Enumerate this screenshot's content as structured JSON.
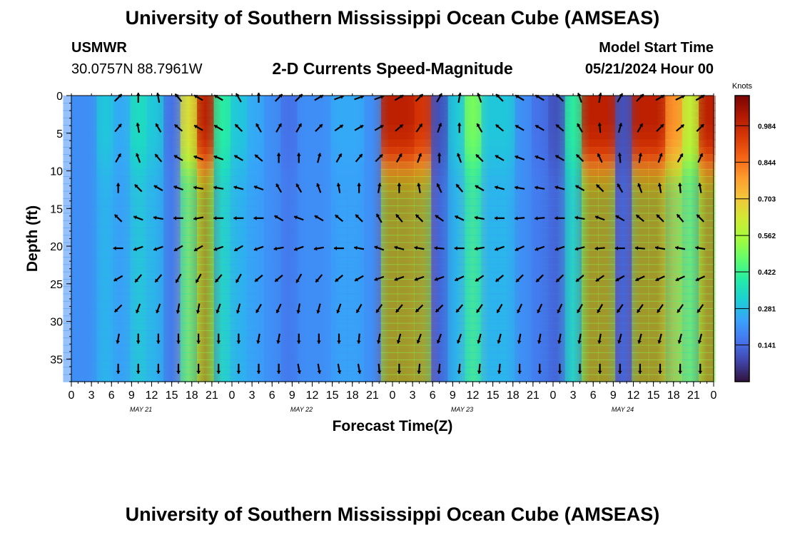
{
  "header": {
    "title": "University of Southern Mississippi Ocean Cube (AMSEAS)",
    "station_name": "USMWR",
    "station_coords": "30.0757N  88.7961W",
    "plot_title": "2-D Currents Speed-Magnitude",
    "model_start_label": "Model Start Time",
    "model_start_value": "05/21/2024 Hour 00"
  },
  "footer": {
    "title": "University of Southern Mississippi Ocean Cube (AMSEAS)"
  },
  "colors": {
    "palette": [
      "#30123b",
      "#4145ab",
      "#4675ed",
      "#39a2fc",
      "#1bcfd4",
      "#24eca6",
      "#61fc6c",
      "#a4fc3b",
      "#d1e834",
      "#f3c63a",
      "#fe9b2d",
      "#f36315",
      "#d93806",
      "#b11901",
      "#7a0403"
    ]
  },
  "chart_data": {
    "type": "heatmap",
    "title": "2-D Currents Speed-Magnitude",
    "xlabel": "Forecast Time(Z)",
    "ylabel": "Depth (ft)",
    "x_range_hours": [
      0,
      96
    ],
    "ylim": [
      38,
      0
    ],
    "x_ticks": [
      "0",
      "3",
      "6",
      "9",
      "12",
      "15",
      "18",
      "21",
      "0",
      "3",
      "6",
      "9",
      "12",
      "15",
      "18",
      "21",
      "0",
      "3",
      "6",
      "9",
      "12",
      "15",
      "18",
      "21",
      "0",
      "3",
      "6",
      "9",
      "12",
      "15",
      "18",
      "21",
      "0"
    ],
    "y_ticks": [
      "0",
      "5",
      "10",
      "15",
      "20",
      "25",
      "30",
      "35"
    ],
    "y_tick_values": [
      0,
      5,
      10,
      15,
      20,
      25,
      30,
      35
    ],
    "date_labels": [
      "MAY 21",
      "MAY 22",
      "MAY 23",
      "MAY 24"
    ],
    "colorbar": {
      "unit": "Knots",
      "ticks": [
        "0.984",
        "0.844",
        "0.703",
        "0.562",
        "0.422",
        "0.281",
        "0.141"
      ],
      "tick_values": [
        0.984,
        0.844,
        0.703,
        0.562,
        0.422,
        0.281,
        0.141
      ],
      "range": [
        0,
        1.1
      ]
    },
    "profile_columns_hours": [
      0,
      2.5,
      5,
      7.5,
      10,
      12.5,
      15,
      17.5,
      20,
      22.5,
      25,
      27.5,
      30,
      32.5,
      35,
      37.5,
      40,
      42.5,
      45,
      47.5,
      50,
      52.5,
      55,
      57.5,
      60,
      62.5,
      65,
      67.5,
      70,
      72.5,
      75,
      77.5,
      80,
      82.5,
      85,
      87.5,
      90,
      92.5,
      95
    ],
    "profile_speed_knots": [
      0.2,
      0.2,
      0.3,
      0.25,
      0.35,
      0.3,
      0.15,
      0.65,
      1.0,
      0.4,
      0.3,
      0.25,
      0.2,
      0.15,
      0.2,
      0.2,
      0.25,
      0.25,
      0.2,
      1.0,
      1.0,
      0.95,
      0.1,
      0.3,
      0.5,
      0.3,
      0.3,
      0.2,
      0.15,
      0.1,
      0.4,
      1.0,
      1.0,
      0.1,
      1.0,
      1.0,
      0.8,
      0.6,
      1.0
    ],
    "depth_profile_factor": [
      1.0,
      1.0,
      1.0,
      1.0,
      0.98,
      0.96,
      0.92,
      0.86,
      0.78,
      0.68,
      0.58,
      0.5,
      0.45,
      0.42,
      0.4,
      0.4,
      0.4,
      0.4,
      0.4,
      0.4,
      0.4,
      0.4,
      0.4,
      0.4,
      0.4,
      0.4,
      0.4,
      0.4,
      0.4,
      0.4,
      0.4,
      0.4,
      0.4,
      0.4,
      0.4,
      0.4,
      0.4,
      0.4,
      0.4
    ],
    "arrow_depths_ft": [
      0,
      4,
      8,
      12,
      16,
      20,
      24,
      28,
      32,
      36
    ],
    "arrow_hours": [
      7,
      10,
      13,
      16,
      19,
      22,
      25,
      28,
      31,
      34,
      37,
      40,
      43,
      46,
      49,
      52,
      55,
      58,
      61,
      64,
      67,
      70,
      73,
      76,
      79,
      82,
      85,
      88,
      91,
      94
    ],
    "arrow_directions_deg": [
      [
        45,
        50,
        60,
        90,
        135,
        180,
        210,
        225,
        260,
        270
      ],
      [
        90,
        100,
        110,
        135,
        160,
        200,
        230,
        250,
        270,
        270
      ],
      [
        100,
        120,
        130,
        150,
        170,
        200,
        230,
        250,
        270,
        270
      ],
      [
        130,
        140,
        150,
        160,
        180,
        210,
        240,
        260,
        270,
        270
      ],
      [
        150,
        150,
        160,
        170,
        190,
        210,
        240,
        260,
        270,
        270
      ],
      [
        150,
        150,
        160,
        170,
        180,
        200,
        230,
        250,
        270,
        270
      ],
      [
        120,
        135,
        150,
        165,
        180,
        210,
        240,
        255,
        270,
        270
      ],
      [
        90,
        120,
        140,
        160,
        180,
        200,
        220,
        240,
        260,
        270
      ],
      [
        45,
        60,
        90,
        120,
        150,
        190,
        220,
        245,
        260,
        270
      ],
      [
        45,
        60,
        90,
        120,
        160,
        200,
        240,
        260,
        270,
        280
      ],
      [
        30,
        45,
        75,
        110,
        150,
        190,
        230,
        255,
        270,
        280
      ],
      [
        20,
        35,
        60,
        100,
        140,
        180,
        220,
        250,
        270,
        280
      ],
      [
        20,
        30,
        50,
        90,
        135,
        170,
        210,
        240,
        265,
        280
      ],
      [
        20,
        30,
        45,
        80,
        120,
        160,
        200,
        235,
        260,
        275
      ],
      [
        30,
        40,
        60,
        90,
        130,
        165,
        200,
        230,
        255,
        270
      ],
      [
        45,
        55,
        70,
        100,
        135,
        170,
        200,
        225,
        250,
        265
      ],
      [
        60,
        70,
        90,
        115,
        145,
        175,
        200,
        225,
        250,
        265
      ],
      [
        80,
        90,
        110,
        130,
        155,
        180,
        205,
        230,
        250,
        265
      ],
      [
        110,
        120,
        135,
        150,
        170,
        190,
        215,
        235,
        255,
        265
      ],
      [
        135,
        140,
        150,
        165,
        180,
        200,
        220,
        240,
        255,
        265
      ],
      [
        150,
        150,
        160,
        170,
        185,
        205,
        225,
        245,
        260,
        270
      ],
      [
        150,
        150,
        160,
        170,
        185,
        200,
        225,
        245,
        260,
        270
      ],
      [
        135,
        140,
        150,
        165,
        180,
        200,
        225,
        245,
        260,
        270
      ],
      [
        110,
        120,
        135,
        150,
        170,
        195,
        220,
        240,
        260,
        270
      ],
      [
        80,
        95,
        115,
        135,
        160,
        185,
        215,
        240,
        260,
        270
      ],
      [
        60,
        75,
        95,
        120,
        150,
        180,
        210,
        235,
        255,
        270
      ],
      [
        45,
        60,
        80,
        110,
        140,
        175,
        205,
        235,
        255,
        270
      ],
      [
        30,
        45,
        70,
        100,
        135,
        170,
        205,
        235,
        255,
        270
      ],
      [
        25,
        40,
        60,
        95,
        130,
        170,
        205,
        235,
        255,
        270
      ],
      [
        30,
        45,
        65,
        100,
        135,
        170,
        205,
        235,
        255,
        270
      ]
    ]
  }
}
